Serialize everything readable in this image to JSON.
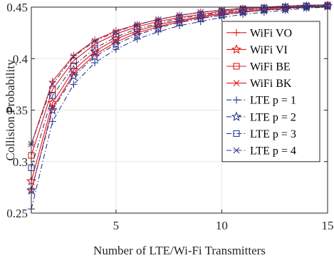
{
  "chart_data": {
    "type": "line",
    "xlabel": "Number of LTE/Wi-Fi Transmitters",
    "ylabel": "Collision Probability",
    "xlim": [
      1,
      15
    ],
    "ylim": [
      0.25,
      0.45
    ],
    "xticks": [
      5,
      10,
      15
    ],
    "yticks": [
      0.25,
      0.3,
      0.35,
      0.4,
      0.45
    ],
    "ytick_labels": [
      "0.25",
      "0.3",
      "0.35",
      "0.4",
      "0.45"
    ],
    "grid": true,
    "legend_position": "bottom-right",
    "x": [
      1,
      2,
      3,
      4,
      5,
      6,
      7,
      8,
      9,
      10,
      11,
      12,
      13,
      14,
      15
    ],
    "series": [
      {
        "name": "WiFi VO",
        "color": "#e31a1c",
        "style": "solid",
        "marker": "plus",
        "values": [
          0.317,
          0.378,
          0.403,
          0.418,
          0.427,
          0.433,
          0.438,
          0.442,
          0.445,
          0.447,
          0.449,
          0.45,
          0.451,
          0.452,
          0.452
        ]
      },
      {
        "name": "WiFi VI",
        "color": "#e31a1c",
        "style": "solid",
        "marker": "star",
        "values": [
          0.281,
          0.357,
          0.389,
          0.407,
          0.419,
          0.427,
          0.433,
          0.437,
          0.441,
          0.444,
          0.446,
          0.448,
          0.449,
          0.45,
          0.451
        ]
      },
      {
        "name": "WiFi BE",
        "color": "#e31a1c",
        "style": "solid",
        "marker": "square",
        "values": [
          0.306,
          0.37,
          0.398,
          0.414,
          0.424,
          0.431,
          0.436,
          0.44,
          0.443,
          0.446,
          0.448,
          0.449,
          0.45,
          0.451,
          0.452
        ]
      },
      {
        "name": "WiFi BK",
        "color": "#e31a1c",
        "style": "solid",
        "marker": "x",
        "values": [
          0.272,
          0.352,
          0.385,
          0.404,
          0.416,
          0.425,
          0.431,
          0.436,
          0.44,
          0.443,
          0.445,
          0.447,
          0.449,
          0.45,
          0.451
        ]
      },
      {
        "name": "LTE p = 1",
        "color": "#2b3a8f",
        "style": "dashdot",
        "marker": "plus",
        "values": [
          0.254,
          0.339,
          0.375,
          0.396,
          0.409,
          0.419,
          0.426,
          0.432,
          0.436,
          0.44,
          0.443,
          0.445,
          0.447,
          0.449,
          0.45
        ]
      },
      {
        "name": "LTE p = 2",
        "color": "#2b3a8f",
        "style": "dashdot",
        "marker": "star",
        "values": [
          0.272,
          0.35,
          0.383,
          0.402,
          0.414,
          0.423,
          0.43,
          0.435,
          0.439,
          0.442,
          0.445,
          0.447,
          0.448,
          0.45,
          0.451
        ]
      },
      {
        "name": "LTE p = 3",
        "color": "#2b3a8f",
        "style": "dashdot",
        "marker": "square",
        "values": [
          0.294,
          0.364,
          0.393,
          0.41,
          0.421,
          0.429,
          0.434,
          0.439,
          0.442,
          0.445,
          0.447,
          0.449,
          0.45,
          0.451,
          0.451
        ]
      },
      {
        "name": "LTE p = 4",
        "color": "#2b3a8f",
        "style": "dashdot",
        "marker": "x",
        "values": [
          0.317,
          0.375,
          0.402,
          0.417,
          0.426,
          0.433,
          0.438,
          0.442,
          0.445,
          0.447,
          0.449,
          0.45,
          0.451,
          0.452,
          0.452
        ]
      }
    ]
  }
}
